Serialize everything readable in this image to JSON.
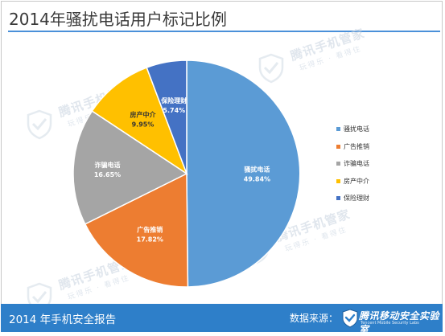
{
  "header": {
    "title": "2014年骚扰电话用户标记比例"
  },
  "watermark": {
    "brand": "腾讯手机管家",
    "slogan": "玩得乐 · 看得住"
  },
  "footer": {
    "report_title": "2014 年手机安全报告",
    "source_label": "数据来源：",
    "brand_name": "腾讯移动安全实验室",
    "brand_sub": "Tencent Mobile Security Labs"
  },
  "colors": {
    "title_rule": "#4a90d9",
    "footer_bg": "#2e7fc9",
    "slice_1": "#5b9bd5",
    "slice_2": "#ed7d31",
    "slice_3": "#a5a5a5",
    "slice_4": "#ffc000",
    "slice_5": "#4472c4"
  },
  "chart_data": {
    "type": "pie",
    "title": "2014年骚扰电话用户标记比例",
    "categories": [
      "骚扰电话",
      "广告推销",
      "诈骗电话",
      "房产中介",
      "保险理财"
    ],
    "values": [
      49.84,
      17.82,
      16.65,
      9.95,
      5.74
    ],
    "value_labels": [
      "49.84%",
      "17.82%",
      "16.65%",
      "9.95%",
      "5.74%"
    ],
    "start": "12 o'clock",
    "direction": "clockwise",
    "legend_placement": "right"
  }
}
